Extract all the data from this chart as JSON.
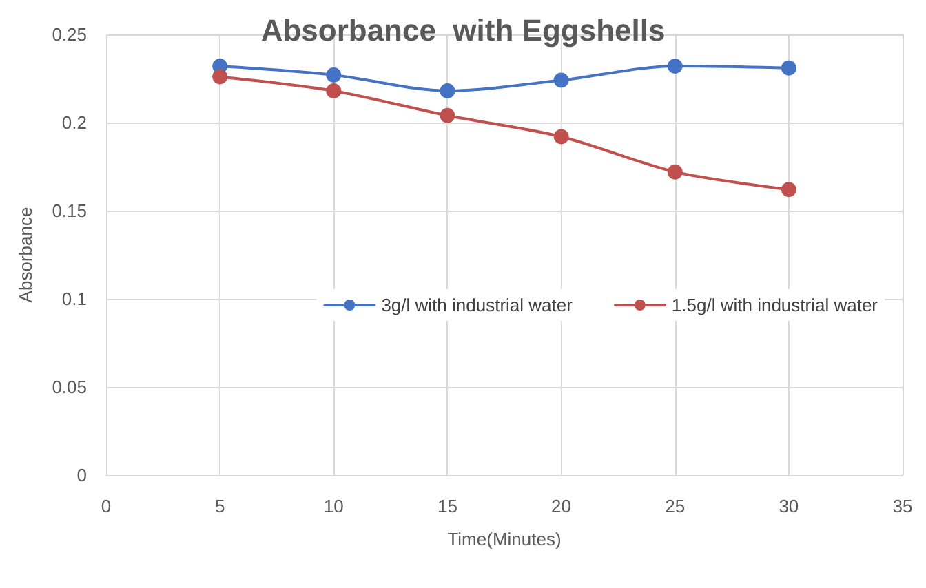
{
  "chart_data": {
    "type": "line",
    "title": "Absorbance  with Eggshells",
    "xlabel": "Time(Minutes)",
    "ylabel": "Absorbance",
    "x": [
      5,
      10,
      15,
      20,
      25,
      30
    ],
    "series": [
      {
        "name": "3g/l with industrial water",
        "color": "#4472c4",
        "values": [
          0.232,
          0.227,
          0.218,
          0.224,
          0.232,
          0.231
        ]
      },
      {
        "name": "1.5g/l with industrial water",
        "color": "#c0504d",
        "values": [
          0.226,
          0.218,
          0.204,
          0.192,
          0.172,
          0.162
        ]
      }
    ],
    "xlim": [
      0,
      35
    ],
    "xticks": [
      0,
      5,
      10,
      15,
      20,
      25,
      30,
      35
    ],
    "ylim": [
      0,
      0.25
    ],
    "yticks": [
      0,
      0.05,
      0.1,
      0.15,
      0.2,
      0.25
    ],
    "grid": true,
    "legend": "right",
    "marker": "circle",
    "line_style": "solid"
  }
}
